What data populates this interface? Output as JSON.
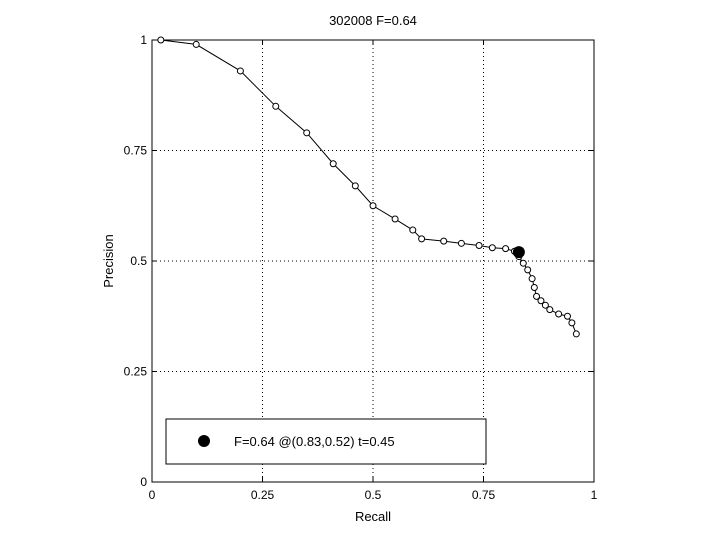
{
  "chart_data": {
    "type": "line",
    "title": "302008 F=0.64",
    "xlabel": "Recall",
    "ylabel": "Precision",
    "xlim": [
      0,
      1
    ],
    "ylim": [
      0,
      1
    ],
    "xticks": [
      0,
      0.25,
      0.5,
      0.75,
      1
    ],
    "yticks": [
      0,
      0.25,
      0.5,
      0.75,
      1
    ],
    "xtick_labels": [
      "0",
      "0.25",
      "0.5",
      "0.75",
      "1"
    ],
    "ytick_labels": [
      "0",
      "0.25",
      "0.5",
      "0.75",
      "1"
    ],
    "grid": true,
    "legend_position": "bottom-left",
    "series": [
      {
        "marker": "open-circle",
        "color": "#000000",
        "x": [
          0.02,
          0.1,
          0.2,
          0.28,
          0.35,
          0.41,
          0.46,
          0.5,
          0.55,
          0.59,
          0.61,
          0.66,
          0.7,
          0.74,
          0.77,
          0.8,
          0.82,
          0.83,
          0.84,
          0.85,
          0.86,
          0.865,
          0.87,
          0.88,
          0.89,
          0.9,
          0.92,
          0.94,
          0.95,
          0.96
        ],
        "y": [
          1.0,
          0.99,
          0.93,
          0.85,
          0.79,
          0.72,
          0.67,
          0.625,
          0.595,
          0.57,
          0.55,
          0.545,
          0.54,
          0.535,
          0.53,
          0.528,
          0.522,
          0.51,
          0.495,
          0.48,
          0.46,
          0.44,
          0.42,
          0.41,
          0.4,
          0.39,
          0.38,
          0.375,
          0.36,
          0.335
        ]
      }
    ],
    "highlight_point": {
      "x": 0.83,
      "y": 0.52,
      "color": "#000000"
    },
    "legend": {
      "text": "F=0.64 @(0.83,0.52) t=0.45"
    }
  }
}
